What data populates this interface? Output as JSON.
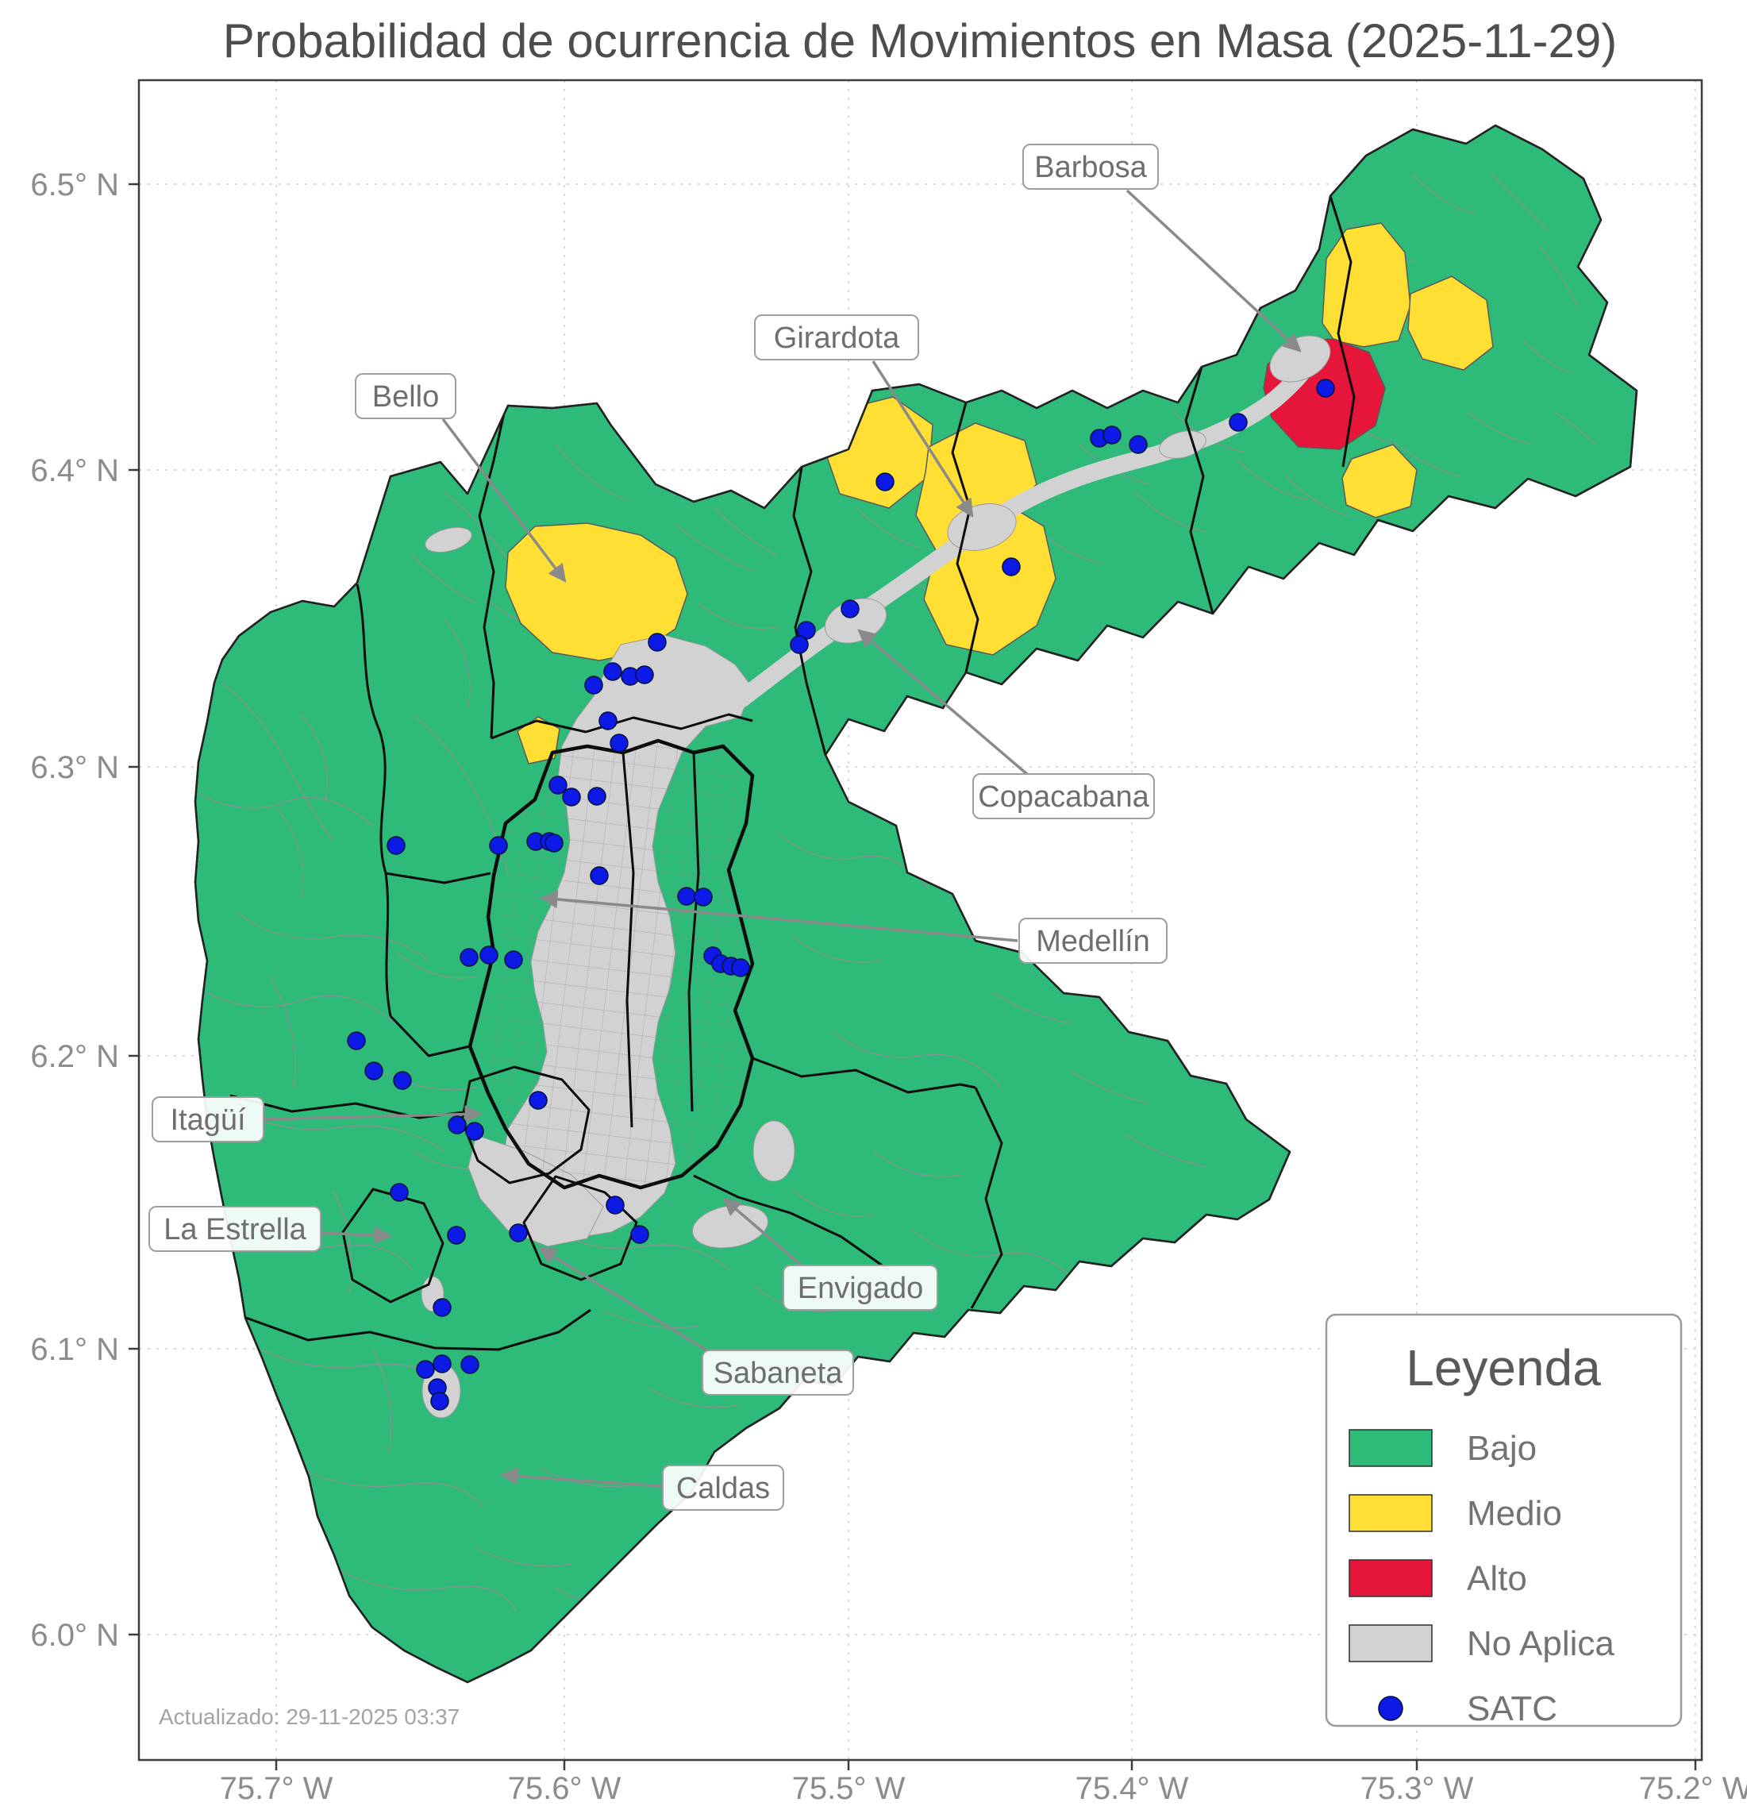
{
  "title": "Probabilidad de ocurrencia de Movimientos en Masa (2025-11-29)",
  "updated": "Actualizado: 29-11-2025 03:37",
  "axes": {
    "x_ticks": [
      "75.7° W",
      "75.6° W",
      "75.5° W",
      "75.4° W",
      "75.3° W",
      "75.2° W"
    ],
    "y_ticks": [
      "6.5° N",
      "6.4° N",
      "6.3° N",
      "6.2° N",
      "6.1° N",
      "6.0° N"
    ]
  },
  "legend": {
    "title": "Leyenda",
    "items": [
      {
        "label": "Bajo",
        "color": "#2eba78",
        "type": "patch"
      },
      {
        "label": "Medio",
        "color": "#ffdf33",
        "type": "patch"
      },
      {
        "label": "Alto",
        "color": "#e6153a",
        "type": "patch"
      },
      {
        "label": "No Aplica",
        "color": "#d2d2d2",
        "type": "patch"
      },
      {
        "label": "SATC",
        "color": "#0d1ae6",
        "type": "marker"
      }
    ]
  },
  "annotations": [
    {
      "label": "Barbosa"
    },
    {
      "label": "Girardota"
    },
    {
      "label": "Bello"
    },
    {
      "label": "Copacabana"
    },
    {
      "label": "Medellín"
    },
    {
      "label": "Itagüí"
    },
    {
      "label": "La Estrella"
    },
    {
      "label": "Envigado"
    },
    {
      "label": "Sabaneta"
    },
    {
      "label": "Caldas"
    }
  ],
  "colors": {
    "low": "#2eba78",
    "medium": "#ffdf33",
    "high": "#e6153a",
    "na": "#d2d2d2",
    "satc": "#0d1ae6"
  },
  "map": {
    "satc_markers": [
      [
        1670,
        489
      ],
      [
        1560,
        532
      ],
      [
        1385,
        552
      ],
      [
        1401,
        548
      ],
      [
        1434,
        560
      ],
      [
        1115,
        607
      ],
      [
        1274,
        714
      ],
      [
        1071,
        767
      ],
      [
        1016,
        794
      ],
      [
        1007,
        812
      ],
      [
        828,
        809
      ],
      [
        772,
        846
      ],
      [
        794,
        852
      ],
      [
        812,
        850
      ],
      [
        748,
        863
      ],
      [
        766,
        908
      ],
      [
        780,
        936
      ],
      [
        703,
        989
      ],
      [
        720,
        1004
      ],
      [
        752,
        1003
      ],
      [
        499,
        1065
      ],
      [
        628,
        1065
      ],
      [
        675,
        1060
      ],
      [
        692,
        1060
      ],
      [
        698,
        1062
      ],
      [
        755,
        1103
      ],
      [
        865,
        1129
      ],
      [
        886,
        1130
      ],
      [
        616,
        1203
      ],
      [
        591,
        1206
      ],
      [
        647,
        1209
      ],
      [
        898,
        1204
      ],
      [
        908,
        1214
      ],
      [
        921,
        1217
      ],
      [
        933,
        1219
      ],
      [
        449,
        1311
      ],
      [
        471,
        1349
      ],
      [
        507,
        1361
      ],
      [
        678,
        1386
      ],
      [
        576,
        1417
      ],
      [
        598,
        1425
      ],
      [
        503,
        1502
      ],
      [
        775,
        1518
      ],
      [
        806,
        1555
      ],
      [
        575,
        1556
      ],
      [
        653,
        1553
      ],
      [
        557,
        1647
      ],
      [
        536,
        1725
      ],
      [
        557,
        1718
      ],
      [
        592,
        1719
      ],
      [
        551,
        1748
      ],
      [
        554,
        1765
      ]
    ]
  }
}
